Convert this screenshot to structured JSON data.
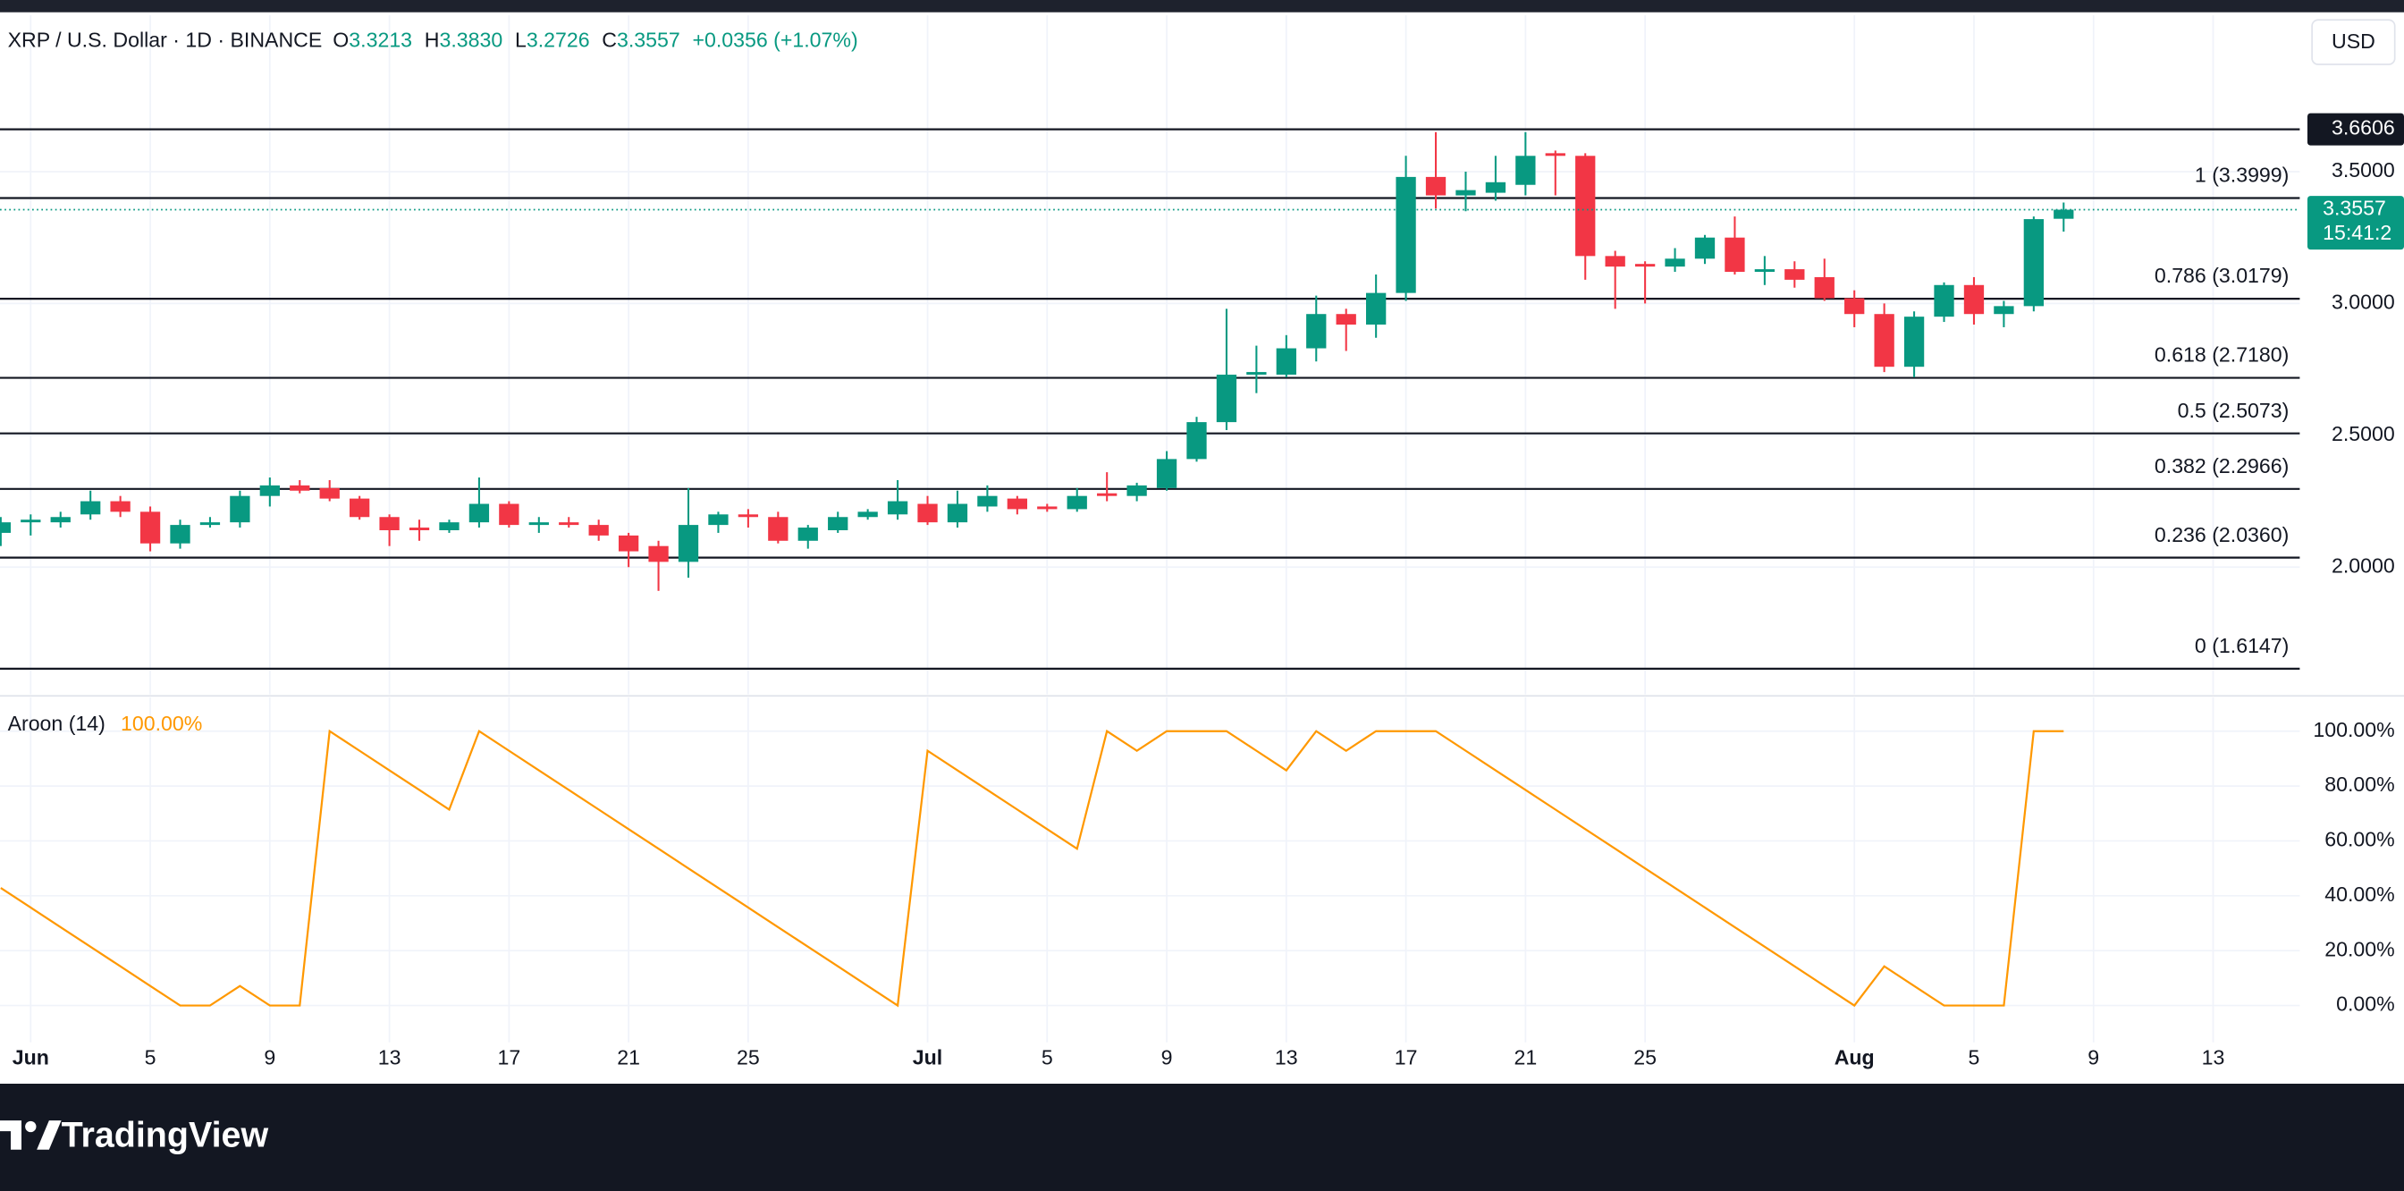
{
  "header": {
    "symbol": "XRP / U.S. Dollar · 1D · BINANCE",
    "ohlc": [
      {
        "label": "O",
        "value": "3.3213"
      },
      {
        "label": "H",
        "value": "3.3830"
      },
      {
        "label": "L",
        "value": "3.2726"
      },
      {
        "label": "C",
        "value": "3.3557"
      }
    ],
    "change": "+0.0356 (+1.07%)",
    "currency": "USD"
  },
  "chart_data": [
    {
      "type": "candlestick",
      "up_color": "#089981",
      "down_color": "#f23645",
      "open": [
        2.13,
        2.17,
        2.17,
        2.2,
        2.25,
        2.21,
        2.09,
        2.16,
        2.17,
        2.27,
        2.31,
        2.3,
        2.26,
        2.19,
        2.15,
        2.14,
        2.17,
        2.24,
        2.16,
        2.17,
        2.16,
        2.12,
        2.08,
        2.02,
        2.16,
        2.2,
        2.19,
        2.1,
        2.14,
        2.19,
        2.2,
        2.24,
        2.17,
        2.23,
        2.26,
        2.23,
        2.22,
        2.28,
        2.27,
        2.3,
        2.41,
        2.55,
        2.73,
        2.73,
        2.83,
        2.96,
        2.92,
        3.04,
        3.48,
        3.41,
        3.42,
        3.45,
        3.57,
        3.56,
        3.18,
        3.15,
        3.14,
        3.17,
        3.25,
        3.12,
        3.13,
        3.1,
        3.02,
        2.96,
        2.76,
        2.95,
        3.07,
        2.96,
        2.99,
        3.3213,
        null,
        null,
        null,
        null,
        null
      ],
      "high": [
        2.19,
        2.2,
        2.21,
        2.29,
        2.27,
        2.23,
        2.18,
        2.19,
        2.29,
        2.34,
        2.33,
        2.33,
        2.27,
        2.2,
        2.18,
        2.18,
        2.34,
        2.25,
        2.19,
        2.19,
        2.18,
        2.13,
        2.1,
        2.3,
        2.21,
        2.22,
        2.21,
        2.16,
        2.21,
        2.22,
        2.33,
        2.27,
        2.29,
        2.31,
        2.27,
        2.24,
        2.3,
        2.36,
        2.32,
        2.44,
        2.57,
        2.98,
        2.84,
        2.88,
        3.03,
        2.98,
        3.11,
        3.56,
        3.65,
        3.5,
        3.56,
        3.65,
        3.58,
        3.57,
        3.2,
        3.16,
        3.21,
        3.26,
        3.33,
        3.18,
        3.16,
        3.17,
        3.05,
        3.0,
        2.97,
        3.08,
        3.1,
        3.01,
        3.33,
        3.383,
        null,
        null,
        null,
        null,
        null
      ],
      "low": [
        2.08,
        2.12,
        2.15,
        2.18,
        2.19,
        2.06,
        2.07,
        2.15,
        2.15,
        2.23,
        2.28,
        2.25,
        2.18,
        2.08,
        2.1,
        2.13,
        2.15,
        2.15,
        2.13,
        2.15,
        2.1,
        2.0,
        1.91,
        1.96,
        2.13,
        2.15,
        2.09,
        2.07,
        2.13,
        2.18,
        2.18,
        2.16,
        2.15,
        2.21,
        2.2,
        2.21,
        2.21,
        2.25,
        2.25,
        2.29,
        2.4,
        2.52,
        2.66,
        2.72,
        2.78,
        2.82,
        2.87,
        3.01,
        3.36,
        3.35,
        3.39,
        3.41,
        3.41,
        3.09,
        2.98,
        3.0,
        3.12,
        3.15,
        3.11,
        3.07,
        3.06,
        3.01,
        2.91,
        2.74,
        2.72,
        2.93,
        2.92,
        2.91,
        2.97,
        3.2726,
        null,
        null,
        null,
        null,
        null
      ],
      "close": [
        2.17,
        2.18,
        2.19,
        2.25,
        2.21,
        2.09,
        2.16,
        2.17,
        2.27,
        2.31,
        2.29,
        2.26,
        2.19,
        2.14,
        2.14,
        2.17,
        2.24,
        2.16,
        2.17,
        2.16,
        2.12,
        2.06,
        2.02,
        2.16,
        2.2,
        2.19,
        2.1,
        2.15,
        2.19,
        2.21,
        2.25,
        2.17,
        2.24,
        2.27,
        2.22,
        2.22,
        2.27,
        2.27,
        2.31,
        2.41,
        2.55,
        2.73,
        2.74,
        2.83,
        2.96,
        2.92,
        3.04,
        3.48,
        3.41,
        3.43,
        3.46,
        3.56,
        3.56,
        3.18,
        3.14,
        3.14,
        3.17,
        3.25,
        3.12,
        3.13,
        3.09,
        3.02,
        2.96,
        2.76,
        2.95,
        3.07,
        2.96,
        2.99,
        3.32,
        3.3557,
        null,
        null,
        null,
        null,
        null
      ],
      "ylim": [
        1.5174,
        4.093
      ],
      "yticks": [
        {
          "value": 2,
          "label": "2.0000"
        },
        {
          "value": 2.5,
          "label": "2.5000"
        },
        {
          "value": 3,
          "label": "3.0000"
        },
        {
          "value": 3.5,
          "label": "3.5000"
        }
      ],
      "grid": true,
      "levels": [
        {
          "label": "1 (3.3999)",
          "value": 3.3999
        },
        {
          "label": "0.786 (3.0179)",
          "value": 3.0179
        },
        {
          "label": "0.618 (2.7180)",
          "value": 2.718
        },
        {
          "label": "0.5 (2.5073)",
          "value": 2.5073
        },
        {
          "label": "0.382 (2.2966)",
          "value": 2.2966
        },
        {
          "label": "0.236 (2.0360)",
          "value": 2.036
        },
        {
          "label": "0 (1.6147)",
          "value": 1.6147
        }
      ],
      "resistance": 3.6606,
      "last_price": 3.3557,
      "countdown": "15:41:2"
    },
    {
      "type": "line",
      "name": "Aroon (14)",
      "last_value_label": "100.00%",
      "color": "#ff9800",
      "categories": [
        null,
        "Jun",
        null,
        null,
        null,
        "5",
        null,
        null,
        null,
        "9",
        null,
        null,
        null,
        "13",
        null,
        null,
        null,
        "17",
        null,
        null,
        null,
        "21",
        null,
        null,
        null,
        "25",
        null,
        null,
        null,
        null,
        null,
        "Jul",
        null,
        null,
        null,
        "5",
        null,
        null,
        null,
        "9",
        null,
        null,
        null,
        "13",
        null,
        null,
        null,
        "17",
        null,
        null,
        null,
        "21",
        null,
        null,
        null,
        "25",
        null,
        null,
        null,
        null,
        null,
        null,
        "Aug",
        null,
        null,
        null,
        "5",
        null,
        null,
        null,
        "9",
        null,
        null,
        null,
        "13"
      ],
      "values": [
        42.86,
        35.71,
        28.57,
        21.43,
        14.29,
        7.14,
        0,
        0,
        7.14,
        0,
        0,
        100,
        92.86,
        85.71,
        78.57,
        71.43,
        100,
        92.86,
        85.71,
        78.57,
        71.43,
        64.29,
        57.14,
        50,
        42.86,
        35.71,
        28.57,
        21.43,
        14.29,
        7.14,
        0,
        92.86,
        85.71,
        78.57,
        71.43,
        64.29,
        57.14,
        100,
        92.86,
        100,
        100,
        100,
        92.86,
        85.71,
        100,
        92.86,
        100,
        100,
        100,
        92.86,
        85.71,
        78.57,
        71.43,
        64.29,
        57.14,
        50,
        42.86,
        35.71,
        28.57,
        21.43,
        14.29,
        7.14,
        0,
        14.29,
        7.14,
        0,
        0,
        0,
        100,
        100,
        null,
        null,
        null,
        null,
        null
      ],
      "ylim": [
        -13.41,
        112.29
      ],
      "yticks": [
        {
          "value": 0,
          "label": "0.00%"
        },
        {
          "value": 20,
          "label": "20.00%"
        },
        {
          "value": 40,
          "label": "40.00%"
        },
        {
          "value": 60,
          "label": "60.00%"
        },
        {
          "value": 80,
          "label": "80.00%"
        },
        {
          "value": 100,
          "label": "100.00%"
        }
      ],
      "grid": true
    }
  ],
  "branding": "TradingView"
}
